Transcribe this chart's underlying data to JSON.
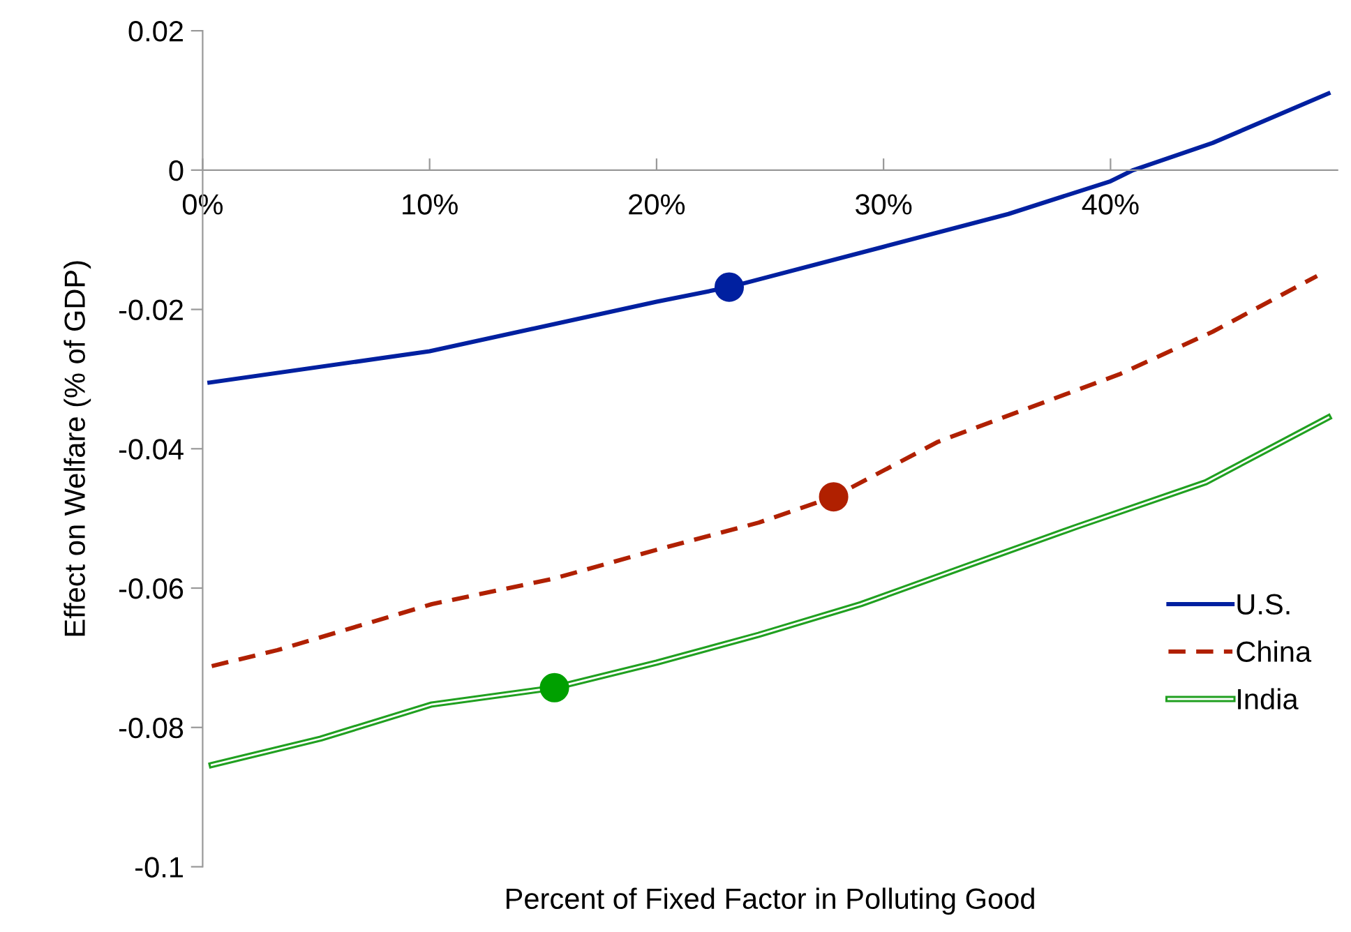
{
  "chart_data": {
    "type": "line",
    "xlabel": "Percent of Fixed Factor in Polluting Good",
    "ylabel": "Effect on Welfare (% of GDP)",
    "xlim": [
      0,
      50
    ],
    "xticks": [
      {
        "value": 0,
        "label": "0%"
      },
      {
        "value": 10,
        "label": "10%"
      },
      {
        "value": 20,
        "label": "20%"
      },
      {
        "value": 30,
        "label": "30%"
      },
      {
        "value": 40,
        "label": "40%"
      }
    ],
    "ylim": [
      -0.1,
      0.02
    ],
    "yticks": [
      {
        "value": -0.1,
        "label": "-0.1"
      },
      {
        "value": -0.08,
        "label": "-0.08"
      },
      {
        "value": -0.06,
        "label": "-0.06"
      },
      {
        "value": -0.04,
        "label": "-0.04"
      },
      {
        "value": -0.02,
        "label": "-0.02"
      },
      {
        "value": 0,
        "label": "0"
      },
      {
        "value": 0.02,
        "label": "0.02"
      }
    ],
    "grid": false,
    "legend": "right",
    "marker": "none",
    "series": [
      {
        "name": "U.S.",
        "color": "#0020a0",
        "line_style": "solid",
        "x": [
          0.3,
          10,
          20,
          23.2,
          30,
          35.5,
          40,
          41,
          44.5,
          49.6
        ],
        "values": [
          -0.0305,
          -0.026,
          -0.0189,
          -0.0168,
          -0.011,
          -0.0063,
          -0.0016,
          0,
          0.0039,
          0.011
        ]
      },
      {
        "name": "China",
        "color": "#b02000",
        "line_style": "dashed",
        "x": [
          0.4,
          3.3,
          10.1,
          15.4,
          20,
          24.5,
          27.8,
          32.4,
          36.6,
          40.4,
          44.5,
          49.1
        ],
        "values": [
          -0.0712,
          -0.0689,
          -0.0623,
          -0.0587,
          -0.0545,
          -0.0506,
          -0.0469,
          -0.039,
          -0.0339,
          -0.0293,
          -0.0232,
          -0.0152
        ]
      },
      {
        "name": "India",
        "color": "#20a020",
        "line_style": "solid",
        "x": [
          0.4,
          5.2,
          10.1,
          15.5,
          20,
          24.5,
          29,
          33.6,
          38.5,
          44.2,
          49.6
        ],
        "values": [
          -0.0854,
          -0.0816,
          -0.0767,
          -0.0743,
          -0.0707,
          -0.0667,
          -0.0623,
          -0.0569,
          -0.0512,
          -0.0448,
          -0.0355
        ]
      },
      {
        "type": "scatter",
        "marker": "circle",
        "color": "#0020a0",
        "x": [
          23.2
        ],
        "values": [
          -0.0168
        ]
      },
      {
        "type": "scatter",
        "marker": "circle",
        "color": "#b02000",
        "x": [
          27.8
        ],
        "values": [
          -0.0469
        ]
      },
      {
        "type": "scatter",
        "marker": "circle",
        "color": "#00a000",
        "x": [
          15.5
        ],
        "values": [
          -0.0743
        ]
      }
    ]
  }
}
